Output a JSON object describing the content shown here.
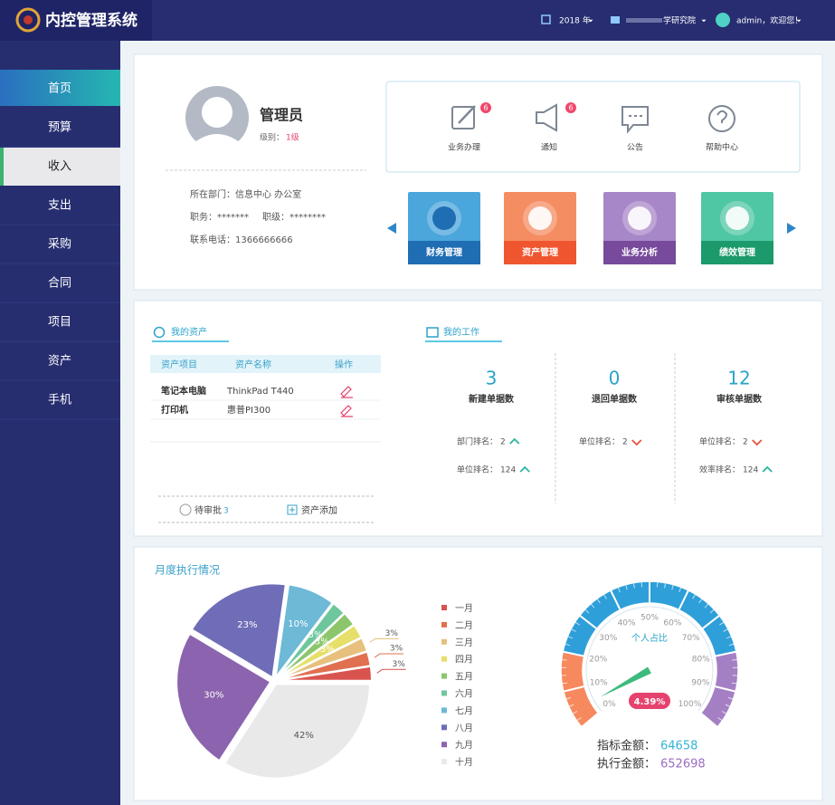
{
  "header": {
    "title": "内控管理系统",
    "year": "2018 年",
    "org": "学研究院",
    "user": "admin，欢迎您！"
  },
  "nav": {
    "items": [
      "首页",
      "预算",
      "收入",
      "支出",
      "采购",
      "合同",
      "项目",
      "资产",
      "手机"
    ]
  },
  "profile": {
    "name": "管理员",
    "level_label": "级别：",
    "level": "1级",
    "department": "所在部门：信息中心 办公室",
    "duty": "职务：*******",
    "rank": "职级：********",
    "phone": "联系电话：1366666666"
  },
  "quick_links": [
    {
      "label": "业务办理",
      "badge": 6
    },
    {
      "label": "通知",
      "badge": 6
    },
    {
      "label": "公告"
    },
    {
      "label": "帮助中心"
    }
  ],
  "modules": [
    {
      "label": "财务管理",
      "color": "#4ba6dc",
      "band_color": "#1f6db3"
    },
    {
      "label": "资产管理",
      "color": "#f58d62",
      "band_color": "#ef5630"
    },
    {
      "label": "业务分析",
      "color": "#a887c8",
      "band_color": "#774a9c"
    },
    {
      "label": "绩效管理",
      "color": "#50c7a4",
      "band_color": "#1c9a6c"
    }
  ],
  "assets": {
    "title": "我的资产",
    "headers": [
      "资产项目",
      "资产名称",
      "操作"
    ],
    "rows": [
      [
        "笔记本电脑",
        "ThinkPad  T440"
      ],
      [
        "打印机",
        "惠普PI300"
      ]
    ],
    "pending_label": "待审批",
    "pending_count": 3,
    "add_label": "资产添加"
  },
  "work": {
    "title": "我的工作",
    "columns": [
      {
        "count": 3,
        "label": "新建单据数",
        "stats": [
          {
            "label": "部门排名：",
            "value": 2,
            "trend": "up"
          },
          {
            "label": "单位排名：",
            "value": 124,
            "trend": "up"
          }
        ]
      },
      {
        "count": 0,
        "label": "退回单据数",
        "stats": [
          {
            "label": "单位排名：",
            "value": 2,
            "trend": "down"
          }
        ]
      },
      {
        "count": 12,
        "label": "审核单据数",
        "stats": [
          {
            "label": "单位排名：",
            "value": 2,
            "trend": "down"
          },
          {
            "label": "效率排名：",
            "value": 124,
            "trend": "up"
          }
        ]
      }
    ]
  },
  "chart_data": [
    {
      "type": "pie",
      "title": "月度执行情况",
      "categories": [
        "一月",
        "二月",
        "三月",
        "四月",
        "五月",
        "六月",
        "七月",
        "八月",
        "九月",
        "十月"
      ],
      "values": [
        3,
        3,
        3,
        3,
        3,
        3,
        10,
        23,
        30,
        42
      ],
      "value_labels": [
        "3%",
        "3%",
        "3%",
        "3%",
        "3%",
        "3%",
        "10%",
        "23%",
        "30%",
        "42%"
      ],
      "colors": [
        "#d9534f",
        "#e0704f",
        "#e6c07c",
        "#e6e06a",
        "#8cc66c",
        "#6ec79c",
        "#6db9d6",
        "#6f6db8",
        "#8c63ae",
        "#e9e9e9"
      ]
    },
    {
      "type": "gauge",
      "title": "个人占比",
      "values": [
        4.39
      ],
      "value_labels": [
        "4.39%"
      ],
      "ylim": [
        0,
        100
      ],
      "yticks": [
        {
          "value": 0,
          "label": "0%"
        },
        {
          "value": 10,
          "label": "10%"
        },
        {
          "value": 20,
          "label": "20%"
        },
        {
          "value": 30,
          "label": "30%"
        },
        {
          "value": 40,
          "label": "40%"
        },
        {
          "value": 50,
          "label": "50%"
        },
        {
          "value": 60,
          "label": "60%"
        },
        {
          "value": 70,
          "label": "70%"
        },
        {
          "value": 80,
          "label": "80%"
        },
        {
          "value": 90,
          "label": "90%"
        },
        {
          "value": 100,
          "label": "100%"
        }
      ],
      "band_colors": [
        "#f7895e",
        "#f7895e",
        "#2e9fd9",
        "#2e9fd9",
        "#2e9fd9",
        "#2e9fd9",
        "#2e9fd9",
        "#2e9fd9",
        "#a57fc4",
        "#a57fc4"
      ],
      "needle_color": "#3dbb7e",
      "badge_color": "#e5436d"
    }
  ],
  "amounts": [
    {
      "label": "指标金额：",
      "value": 64658,
      "color": "#33b3d6"
    },
    {
      "label": "执行金额：",
      "value": 652698,
      "color": "#9d6cc2"
    }
  ]
}
